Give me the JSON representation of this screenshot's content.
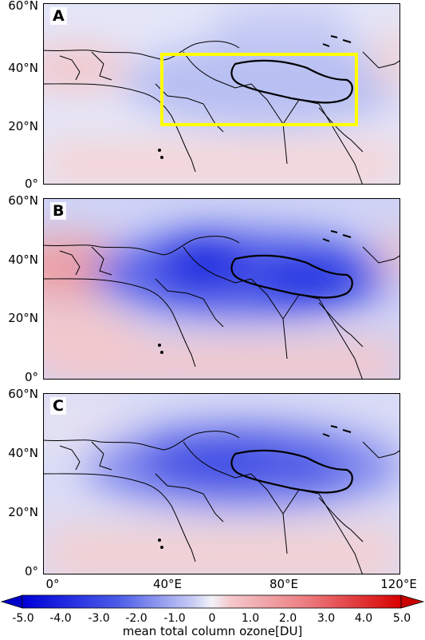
{
  "panels": [
    {
      "label": "A",
      "highlight_box": true
    },
    {
      "label": "B",
      "highlight_box": false
    },
    {
      "label": "C",
      "highlight_box": false
    }
  ],
  "lat_ticks": [
    "60°N",
    "40°N",
    "20°N",
    "0°"
  ],
  "lon_ticks": [
    "0°",
    "40°E",
    "80°E",
    "120°E"
  ],
  "colorbar": {
    "ticks": [
      "-5.0",
      "-4.0",
      "-3.0",
      "-2.0",
      "-1.0",
      "0",
      "1.0",
      "2.0",
      "3.0",
      "4.0",
      "5.0"
    ],
    "title": "mean total column ozone[DU]",
    "range": [
      -5.0,
      5.0
    ],
    "colors": {
      "negative": "#0000e0",
      "neutral": "#eeeef8",
      "positive": "#e00000"
    }
  },
  "highlight_color": "#ffff00"
}
